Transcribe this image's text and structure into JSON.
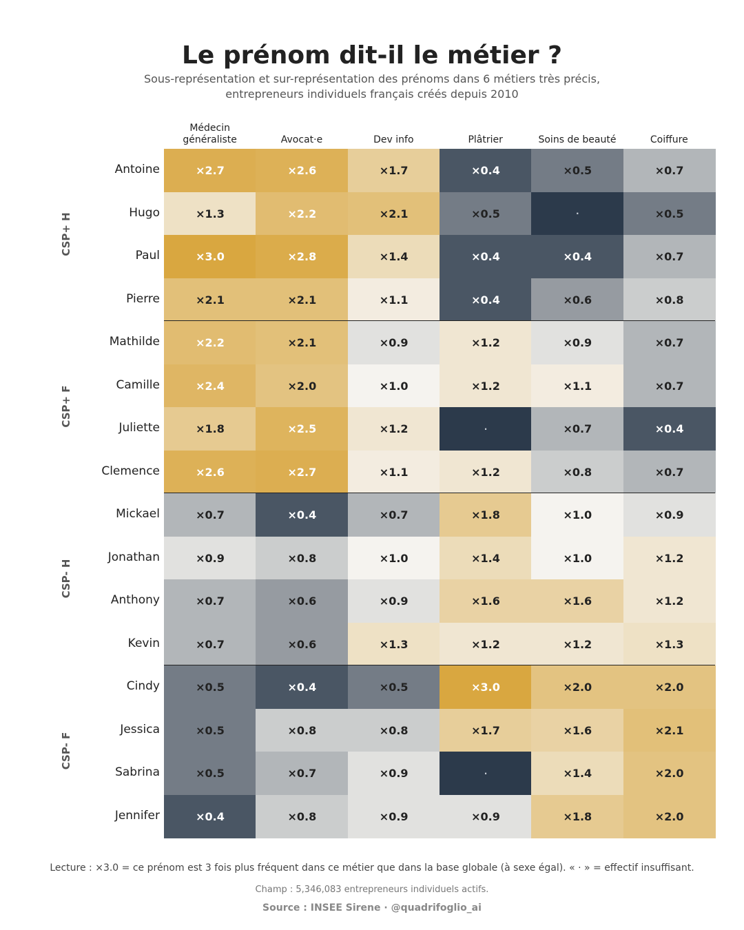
{
  "title": "Le prénom dit-il le métier ?",
  "subtitle": "Sous-représentation et sur-représentation des prénoms dans 6 métiers très précis, entrepreneurs individuels français créés depuis 2010",
  "footnote": "Lecture : ×3.0 = ce prénom est 3 fois plus fréquent dans ce métier que dans la base globale (à sexe égal). « · » = effectif insuffisant.",
  "scope": "Champ : 5,346,083 entrepreneurs individuels actifs.",
  "source": "Source : INSEE Sirene  ·  @quadrifoglio_ai",
  "colors": {
    "gold": "#d9a740",
    "neutral": "#f5f3ef",
    "slate": "#2c3a4b",
    "insufficient": "#2c3a4b",
    "separator": "#222222"
  },
  "chart_data": {
    "type": "heatmap",
    "title": "Le prénom dit-il le métier ?",
    "columns": [
      "Médecin généraliste",
      "Avocat·e",
      "Dev info",
      "Plâtrier",
      "Soins de beauté",
      "Coiffure"
    ],
    "groups": [
      {
        "label": "CSP+ H",
        "rows": [
          {
            "name": "Antoine",
            "values": [
              2.7,
              2.6,
              1.7,
              0.4,
              0.5,
              0.7
            ]
          },
          {
            "name": "Hugo",
            "values": [
              1.3,
              2.2,
              2.1,
              0.5,
              null,
              0.5
            ]
          },
          {
            "name": "Paul",
            "values": [
              3.0,
              2.8,
              1.4,
              0.4,
              0.4,
              0.7
            ]
          },
          {
            "name": "Pierre",
            "values": [
              2.1,
              2.1,
              1.1,
              0.4,
              0.6,
              0.8
            ]
          }
        ]
      },
      {
        "label": "CSP+ F",
        "rows": [
          {
            "name": "Mathilde",
            "values": [
              2.2,
              2.1,
              0.9,
              1.2,
              0.9,
              0.7
            ]
          },
          {
            "name": "Camille",
            "values": [
              2.4,
              2.0,
              1.0,
              1.2,
              1.1,
              0.7
            ]
          },
          {
            "name": "Juliette",
            "values": [
              1.8,
              2.5,
              1.2,
              null,
              0.7,
              0.4
            ]
          },
          {
            "name": "Clemence",
            "values": [
              2.6,
              2.7,
              1.1,
              1.2,
              0.8,
              0.7
            ]
          }
        ]
      },
      {
        "label": "CSP- H",
        "rows": [
          {
            "name": "Mickael",
            "values": [
              0.7,
              0.4,
              0.7,
              1.8,
              1.0,
              0.9
            ]
          },
          {
            "name": "Jonathan",
            "values": [
              0.9,
              0.8,
              1.0,
              1.4,
              1.0,
              1.2
            ]
          },
          {
            "name": "Anthony",
            "values": [
              0.7,
              0.6,
              0.9,
              1.6,
              1.6,
              1.2
            ]
          },
          {
            "name": "Kevin",
            "values": [
              0.7,
              0.6,
              1.3,
              1.2,
              1.2,
              1.3
            ]
          }
        ]
      },
      {
        "label": "CSP- F",
        "rows": [
          {
            "name": "Cindy",
            "values": [
              0.5,
              0.4,
              0.5,
              3.0,
              2.0,
              2.0
            ]
          },
          {
            "name": "Jessica",
            "values": [
              0.5,
              0.8,
              0.8,
              1.7,
              1.6,
              2.1
            ]
          },
          {
            "name": "Sabrina",
            "values": [
              0.5,
              0.7,
              0.9,
              null,
              1.4,
              2.0
            ]
          },
          {
            "name": "Jennifer",
            "values": [
              0.4,
              0.8,
              0.9,
              0.9,
              1.8,
              2.0
            ]
          }
        ]
      }
    ],
    "value_prefix": "×",
    "missing_symbol": "·",
    "color_scale": "log, diverging: slate (under-represented) → light neutral (×1.0) → gold (over-represented)"
  }
}
